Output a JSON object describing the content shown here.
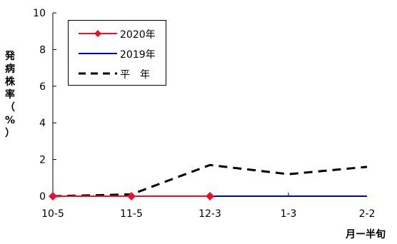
{
  "chart_data": {
    "type": "line",
    "categories": [
      "10-5",
      "11-5",
      "12-3",
      "1-3",
      "2-2"
    ],
    "ylim": [
      0,
      10
    ],
    "yticks": [
      0,
      2,
      4,
      6,
      8,
      10
    ],
    "ylabel_chars": [
      "発",
      "病",
      "株",
      "率",
      "（",
      "%",
      "）"
    ],
    "xlabel": "月ー半旬",
    "legend_position": "top-left",
    "grid": false,
    "series": [
      {
        "name": "2020年",
        "values": [
          0,
          0,
          0,
          null,
          null
        ],
        "color": "#e8112d",
        "marker": "diamond",
        "style": "solid"
      },
      {
        "name": "2019年",
        "values": [
          0,
          0,
          0,
          0,
          0
        ],
        "color": "#0000cc",
        "marker": "none",
        "style": "solid"
      },
      {
        "name": "平　年",
        "values": [
          0.0,
          0.1,
          1.7,
          1.2,
          1.6
        ],
        "color": "#000000",
        "marker": "none",
        "style": "dashed"
      }
    ]
  }
}
